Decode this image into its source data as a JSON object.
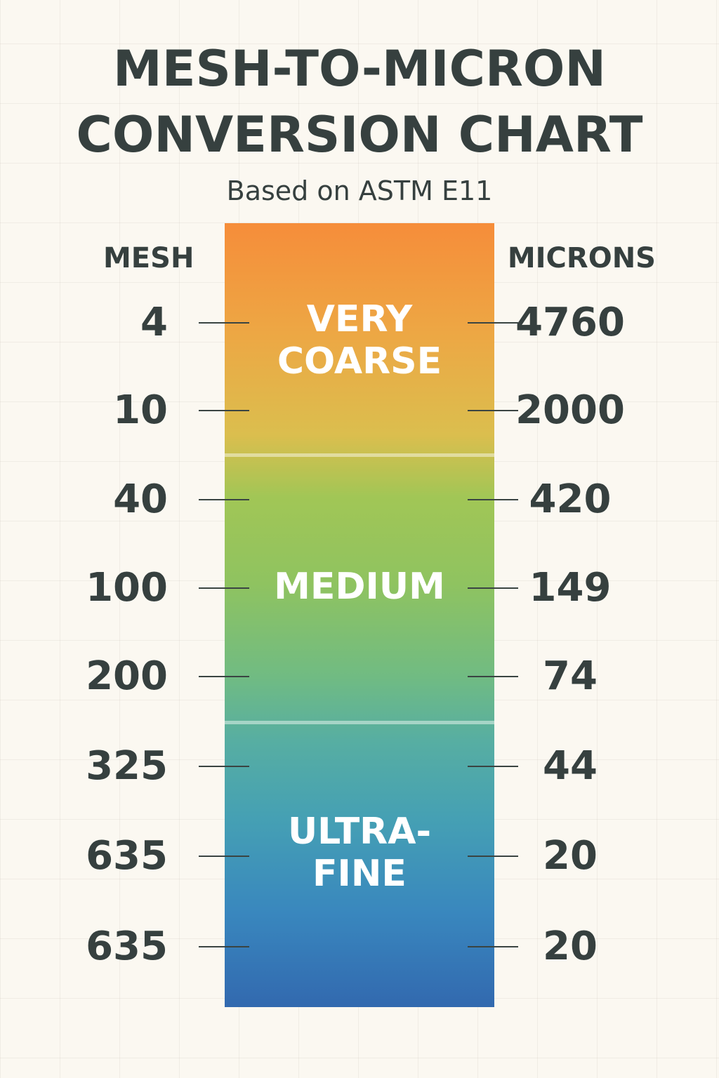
{
  "title_lines": [
    "MESH-TO-MICRON",
    "CONVERSION CHART"
  ],
  "subtitle": "Based on ASTM E11",
  "colors": {
    "text": "#36403f",
    "background": "#fbf8f1",
    "gradient_top": "#f68d3a",
    "gradient_middle": "#8fc360",
    "gradient_bottom": "#3269af"
  },
  "chart_data": {
    "type": "table",
    "title": "MESH-TO-MICRON CONVERSION CHART",
    "subtitle": "Based on ASTM E11",
    "columns": [
      "MESH",
      "MICRONS"
    ],
    "rows": [
      {
        "mesh": "4",
        "microns": "4760"
      },
      {
        "mesh": "10",
        "microns": "2000"
      },
      {
        "mesh": "40",
        "microns": "420"
      },
      {
        "mesh": "100",
        "microns": "149"
      },
      {
        "mesh": "200",
        "microns": "74"
      },
      {
        "mesh": "325",
        "microns": "44"
      },
      {
        "mesh": "635",
        "microns": "20"
      },
      {
        "mesh": "635",
        "microns": "20"
      }
    ],
    "zones": [
      {
        "label_lines": [
          "VERY",
          "COARSE"
        ]
      },
      {
        "label_lines": [
          "MEDIUM"
        ]
      },
      {
        "label_lines": [
          "ULTRA-",
          "FINE"
        ]
      }
    ]
  }
}
